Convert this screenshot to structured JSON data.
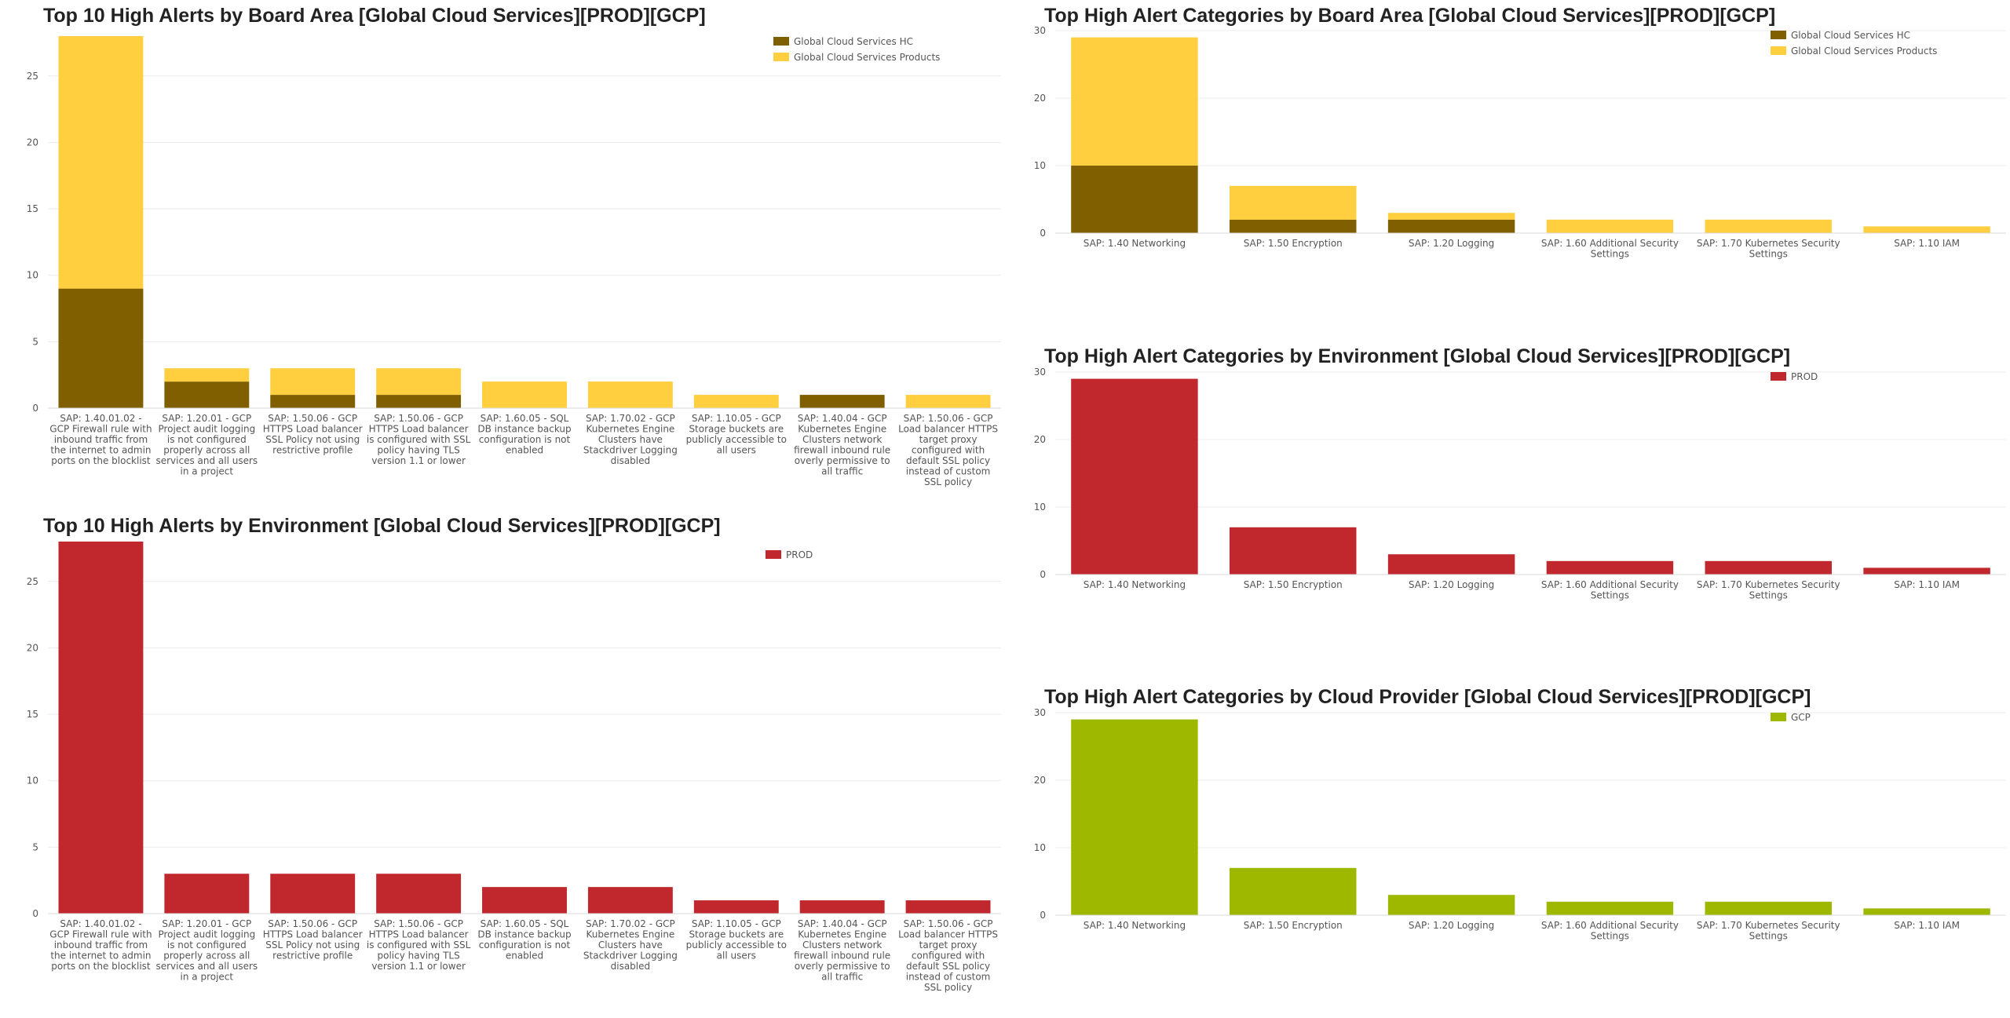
{
  "colors": {
    "hc": "#7f5f00",
    "products": "#ffcf40",
    "prod": "#c0282d",
    "gcp": "#9eb800"
  },
  "chart_data": [
    {
      "id": "alerts-board-area",
      "type": "bar",
      "stacked": true,
      "title": "Top 10 High Alerts by Board Area [Global Cloud Services][PROD][GCP]",
      "categories": [
        "SAP: 1.40.01.02 - GCP Firewall rule with inbound traffic from the internet to admin ports on the blocklist",
        "SAP: 1.20.01 - GCP Project audit logging is not configured properly across all services and all users in a project",
        "SAP: 1.50.06 - GCP HTTPS Load balancer SSL Policy not using restrictive profile",
        "SAP: 1.50.06 - GCP HTTPS Load balancer is configured with SSL policy having TLS version 1.1 or lower",
        "SAP: 1.60.05 - SQL DB instance backup configuration is not enabled",
        "SAP: 1.70.02 - GCP Kubernetes Engine Clusters have Stackdriver Logging disabled",
        "SAP: 1.10.05 - GCP Storage buckets are publicly accessible to all users",
        "SAP: 1.40.04 - GCP Kubernetes Engine Clusters network firewall inbound rule overly permissive to all traffic",
        "SAP: 1.50.06 - GCP Load balancer HTTPS target proxy configured with default SSL policy instead of custom SSL policy"
      ],
      "category_lines": [
        [
          "SAP: 1.40.01.02 -",
          "GCP Firewall rule with",
          "inbound traffic from",
          "the internet to admin",
          "ports on the blocklist"
        ],
        [
          "SAP: 1.20.01 - GCP",
          "Project audit logging",
          "is not configured",
          "properly across all",
          "services and all users",
          "in a project"
        ],
        [
          "SAP: 1.50.06 - GCP",
          "HTTPS Load balancer",
          "SSL Policy not using",
          "restrictive profile"
        ],
        [
          "SAP: 1.50.06 - GCP",
          "HTTPS Load balancer",
          "is configured with SSL",
          "policy having TLS",
          "version 1.1 or lower"
        ],
        [
          "SAP: 1.60.05 - SQL",
          "DB instance backup",
          "configuration is not",
          "enabled"
        ],
        [
          "SAP: 1.70.02 - GCP",
          "Kubernetes Engine",
          "Clusters have",
          "Stackdriver Logging",
          "disabled"
        ],
        [
          "SAP: 1.10.05 - GCP",
          "Storage buckets are",
          "publicly accessible to",
          "all users"
        ],
        [
          "SAP: 1.40.04 - GCP",
          "Kubernetes Engine",
          "Clusters network",
          "firewall inbound rule",
          "overly permissive to",
          "all traffic"
        ],
        [
          "SAP: 1.50.06 - GCP",
          "Load balancer HTTPS",
          "target proxy",
          "configured with",
          "default SSL policy",
          "instead of custom",
          "SSL policy"
        ]
      ],
      "series": [
        {
          "name": "Global Cloud Services HC",
          "color": "#7f5f00",
          "values": [
            9,
            2,
            1,
            1,
            0,
            0,
            0,
            1,
            0
          ]
        },
        {
          "name": "Global Cloud Services Products",
          "color": "#ffcf40",
          "values": [
            19,
            1,
            2,
            2,
            2,
            2,
            1,
            0,
            1
          ]
        }
      ],
      "ylim": [
        0,
        28
      ],
      "yticks": [
        0,
        5,
        10,
        15,
        20,
        25
      ],
      "grid": true,
      "legend": "top-right"
    },
    {
      "id": "alerts-environment",
      "type": "bar",
      "stacked": false,
      "title": "Top 10 High Alerts by Environment [Global Cloud Services][PROD][GCP]",
      "categories": [
        "SAP: 1.40.01.02 - GCP Firewall rule with inbound traffic from the internet to admin ports on the blocklist",
        "SAP: 1.20.01 - GCP Project audit logging is not configured properly across all services and all users in a project",
        "SAP: 1.50.06 - GCP HTTPS Load balancer SSL Policy not using restrictive profile",
        "SAP: 1.50.06 - GCP HTTPS Load balancer is configured with SSL policy having TLS version 1.1 or lower",
        "SAP: 1.60.05 - SQL DB instance backup configuration is not enabled",
        "SAP: 1.70.02 - GCP Kubernetes Engine Clusters have Stackdriver Logging disabled",
        "SAP: 1.10.05 - GCP Storage buckets are publicly accessible to all users",
        "SAP: 1.40.04 - GCP Kubernetes Engine Clusters network firewall inbound rule overly permissive to all traffic",
        "SAP: 1.50.06 - GCP Load balancer HTTPS target proxy configured with default SSL policy instead of custom SSL policy"
      ],
      "category_lines": [
        [
          "SAP: 1.40.01.02 -",
          "GCP Firewall rule with",
          "inbound traffic from",
          "the internet to admin",
          "ports on the blocklist"
        ],
        [
          "SAP: 1.20.01 - GCP",
          "Project audit logging",
          "is not configured",
          "properly across all",
          "services and all users",
          "in a project"
        ],
        [
          "SAP: 1.50.06 - GCP",
          "HTTPS Load balancer",
          "SSL Policy not using",
          "restrictive profile"
        ],
        [
          "SAP: 1.50.06 - GCP",
          "HTTPS Load balancer",
          "is configured with SSL",
          "policy having TLS",
          "version 1.1 or lower"
        ],
        [
          "SAP: 1.60.05 - SQL",
          "DB instance backup",
          "configuration is not",
          "enabled"
        ],
        [
          "SAP: 1.70.02 - GCP",
          "Kubernetes Engine",
          "Clusters have",
          "Stackdriver Logging",
          "disabled"
        ],
        [
          "SAP: 1.10.05 - GCP",
          "Storage buckets are",
          "publicly accessible to",
          "all users"
        ],
        [
          "SAP: 1.40.04 - GCP",
          "Kubernetes Engine",
          "Clusters network",
          "firewall inbound rule",
          "overly permissive to",
          "all traffic"
        ],
        [
          "SAP: 1.50.06 - GCP",
          "Load balancer HTTPS",
          "target proxy",
          "configured with",
          "default SSL policy",
          "instead of custom",
          "SSL policy"
        ]
      ],
      "series": [
        {
          "name": "PROD",
          "color": "#c0282d",
          "values": [
            28,
            3,
            3,
            3,
            2,
            2,
            1,
            1,
            1
          ]
        }
      ],
      "ylim": [
        0,
        28
      ],
      "yticks": [
        0,
        5,
        10,
        15,
        20,
        25
      ],
      "grid": true,
      "legend": "top-right"
    },
    {
      "id": "categories-board-area",
      "type": "bar",
      "stacked": true,
      "title": "Top High Alert Categories by Board Area [Global Cloud Services][PROD][GCP]",
      "categories": [
        "SAP: 1.40 Networking",
        "SAP: 1.50 Encryption",
        "SAP: 1.20 Logging",
        "SAP: 1.60 Additional Security Settings",
        "SAP: 1.70 Kubernetes Security Settings",
        "SAP: 1.10 IAM"
      ],
      "category_lines": [
        [
          "SAP: 1.40 Networking"
        ],
        [
          "SAP: 1.50 Encryption"
        ],
        [
          "SAP: 1.20 Logging"
        ],
        [
          "SAP: 1.60 Additional Security",
          "Settings"
        ],
        [
          "SAP: 1.70 Kubernetes Security",
          "Settings"
        ],
        [
          "SAP: 1.10 IAM"
        ]
      ],
      "series": [
        {
          "name": "Global Cloud Services HC",
          "color": "#7f5f00",
          "values": [
            10,
            2,
            2,
            0,
            0,
            0
          ]
        },
        {
          "name": "Global Cloud Services Products",
          "color": "#ffcf40",
          "values": [
            19,
            5,
            1,
            2,
            2,
            1
          ]
        }
      ],
      "ylim": [
        0,
        30
      ],
      "yticks": [
        0,
        10,
        20,
        30
      ],
      "grid": true,
      "legend": "top-right"
    },
    {
      "id": "categories-environment",
      "type": "bar",
      "stacked": false,
      "title": "Top High Alert Categories by Environment [Global Cloud Services][PROD][GCP]",
      "categories": [
        "SAP: 1.40 Networking",
        "SAP: 1.50 Encryption",
        "SAP: 1.20 Logging",
        "SAP: 1.60 Additional Security Settings",
        "SAP: 1.70 Kubernetes Security Settings",
        "SAP: 1.10 IAM"
      ],
      "category_lines": [
        [
          "SAP: 1.40 Networking"
        ],
        [
          "SAP: 1.50 Encryption"
        ],
        [
          "SAP: 1.20 Logging"
        ],
        [
          "SAP: 1.60 Additional Security",
          "Settings"
        ],
        [
          "SAP: 1.70 Kubernetes Security",
          "Settings"
        ],
        [
          "SAP: 1.10 IAM"
        ]
      ],
      "series": [
        {
          "name": "PROD",
          "color": "#c0282d",
          "values": [
            29,
            7,
            3,
            2,
            2,
            1
          ]
        }
      ],
      "ylim": [
        0,
        30
      ],
      "yticks": [
        0,
        10,
        20,
        30
      ],
      "grid": true,
      "legend": "top-right"
    },
    {
      "id": "categories-cloud-provider",
      "type": "bar",
      "stacked": false,
      "title": "Top High Alert Categories by Cloud Provider [Global Cloud Services][PROD][GCP]",
      "categories": [
        "SAP: 1.40 Networking",
        "SAP: 1.50 Encryption",
        "SAP: 1.20 Logging",
        "SAP: 1.60 Additional Security Settings",
        "SAP: 1.70 Kubernetes Security Settings",
        "SAP: 1.10 IAM"
      ],
      "category_lines": [
        [
          "SAP: 1.40 Networking"
        ],
        [
          "SAP: 1.50 Encryption"
        ],
        [
          "SAP: 1.20 Logging"
        ],
        [
          "SAP: 1.60 Additional Security",
          "Settings"
        ],
        [
          "SAP: 1.70 Kubernetes Security",
          "Settings"
        ],
        [
          "SAP: 1.10 IAM"
        ]
      ],
      "series": [
        {
          "name": "GCP",
          "color": "#9eb800",
          "values": [
            29,
            7,
            3,
            2,
            2,
            1
          ]
        }
      ],
      "ylim": [
        0,
        30
      ],
      "yticks": [
        0,
        10,
        20,
        30
      ],
      "grid": true,
      "legend": "top-right"
    }
  ]
}
